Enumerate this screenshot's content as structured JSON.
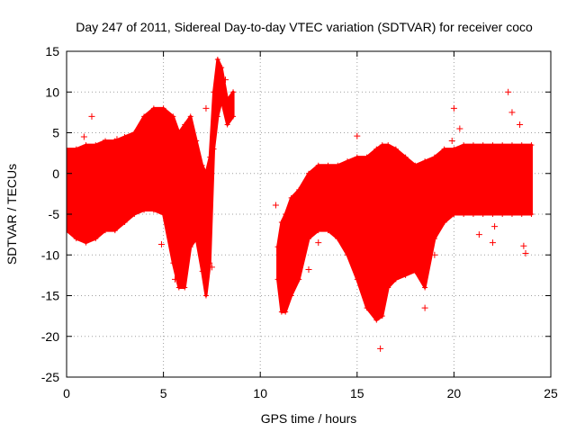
{
  "chart_data": {
    "type": "scatter",
    "title": "Day 247 of 2011, Sidereal Day-to-day VTEC variation (SDTVAR) for receiver coco",
    "xlabel": "GPS time / hours",
    "ylabel": "SDTVAR / TECUs",
    "xlim": [
      0,
      25
    ],
    "ylim": [
      -25,
      15
    ],
    "xticks": [
      0,
      5,
      10,
      15,
      20,
      25
    ],
    "yticks": [
      -25,
      -20,
      -15,
      -10,
      -5,
      0,
      5,
      10,
      15
    ],
    "grid": true,
    "marker": "+",
    "colors": {
      "series": "#ff0000",
      "grid": "#a0a0a0",
      "axis": "#000000"
    },
    "series": [
      {
        "name": "SDTVAR",
        "bands": [
          {
            "x": [
              0.0,
              0.5,
              1.0,
              1.5,
              2.0,
              2.5,
              3.0,
              3.5,
              4.0,
              4.5,
              5.0,
              5.5,
              5.8,
              6.1,
              6.4,
              6.7,
              7.0,
              7.2,
              7.4,
              7.6,
              7.8,
              8.0,
              8.3,
              8.6
            ],
            "hi": [
              3.0,
              3.0,
              3.5,
              3.5,
              4.0,
              4.0,
              4.5,
              5.0,
              7.0,
              8.0,
              8.0,
              7.0,
              5.0,
              6.0,
              7.0,
              4.0,
              1.0,
              0.0,
              2.0,
              10.0,
              14.0,
              13.0,
              9.0,
              10.0
            ],
            "lo": [
              -7.0,
              -8.0,
              -8.5,
              -8.0,
              -7.0,
              -7.0,
              -6.0,
              -5.0,
              -4.5,
              -4.5,
              -5.0,
              -11.0,
              -14.0,
              -14.0,
              -9.0,
              -8.0,
              -12.0,
              -15.0,
              -11.0,
              3.0,
              7.0,
              9.0,
              6.0,
              7.0
            ]
          },
          {
            "x": [
              10.9,
              11.1,
              11.3,
              11.6,
              12.0,
              12.5,
              13.0,
              13.5,
              14.0,
              14.5,
              15.0,
              15.5,
              16.0,
              16.3,
              16.6,
              17.0,
              17.5,
              18.0,
              18.5,
              19.0,
              19.5,
              20.0,
              20.5,
              21.0,
              21.5,
              22.0,
              22.5,
              23.0,
              23.5,
              24.0
            ],
            "hi": [
              -9.0,
              -6.0,
              -5.0,
              -3.0,
              -2.0,
              0.0,
              1.0,
              1.0,
              1.0,
              1.5,
              2.0,
              2.0,
              3.0,
              3.5,
              3.5,
              3.0,
              2.0,
              1.0,
              1.5,
              2.0,
              3.0,
              3.0,
              3.5,
              3.5,
              3.5,
              3.5,
              3.5,
              3.5,
              3.5,
              3.5
            ],
            "lo": [
              -13.0,
              -17.0,
              -17.0,
              -15.0,
              -13.0,
              -8.0,
              -7.0,
              -7.0,
              -8.0,
              -10.0,
              -13.0,
              -16.5,
              -18.0,
              -17.5,
              -14.0,
              -13.0,
              -12.5,
              -12.0,
              -14.0,
              -8.0,
              -6.0,
              -5.0,
              -5.0,
              -5.0,
              -5.0,
              -5.0,
              -5.0,
              -5.0,
              -5.0,
              -5.0
            ]
          }
        ],
        "outliers": [
          {
            "x": 1.3,
            "y": 7.0
          },
          {
            "x": 0.9,
            "y": 4.5
          },
          {
            "x": 1.9,
            "y": 3.8
          },
          {
            "x": 2.6,
            "y": 4.2
          },
          {
            "x": 4.9,
            "y": -8.7
          },
          {
            "x": 5.6,
            "y": -13.0
          },
          {
            "x": 6.2,
            "y": -10.0
          },
          {
            "x": 6.5,
            "y": -7.5
          },
          {
            "x": 7.2,
            "y": 8.0
          },
          {
            "x": 7.5,
            "y": -11.5
          },
          {
            "x": 8.2,
            "y": 11.5
          },
          {
            "x": 10.8,
            "y": -3.9
          },
          {
            "x": 11.0,
            "y": -9.5
          },
          {
            "x": 12.5,
            "y": -11.8
          },
          {
            "x": 13.0,
            "y": -8.5
          },
          {
            "x": 15.0,
            "y": 4.6
          },
          {
            "x": 15.5,
            "y": -12.5
          },
          {
            "x": 16.2,
            "y": -21.5
          },
          {
            "x": 18.5,
            "y": -16.5
          },
          {
            "x": 19.0,
            "y": -10.0
          },
          {
            "x": 19.9,
            "y": 4.0
          },
          {
            "x": 20.0,
            "y": 8.0
          },
          {
            "x": 20.3,
            "y": 5.5
          },
          {
            "x": 21.3,
            "y": -7.5
          },
          {
            "x": 22.0,
            "y": -8.5
          },
          {
            "x": 22.1,
            "y": -6.5
          },
          {
            "x": 22.8,
            "y": 10.0
          },
          {
            "x": 23.0,
            "y": 7.5
          },
          {
            "x": 23.4,
            "y": 6.0
          },
          {
            "x": 23.5,
            "y": 2.5
          },
          {
            "x": 23.6,
            "y": -8.9
          },
          {
            "x": 23.7,
            "y": -9.8
          }
        ]
      }
    ]
  }
}
